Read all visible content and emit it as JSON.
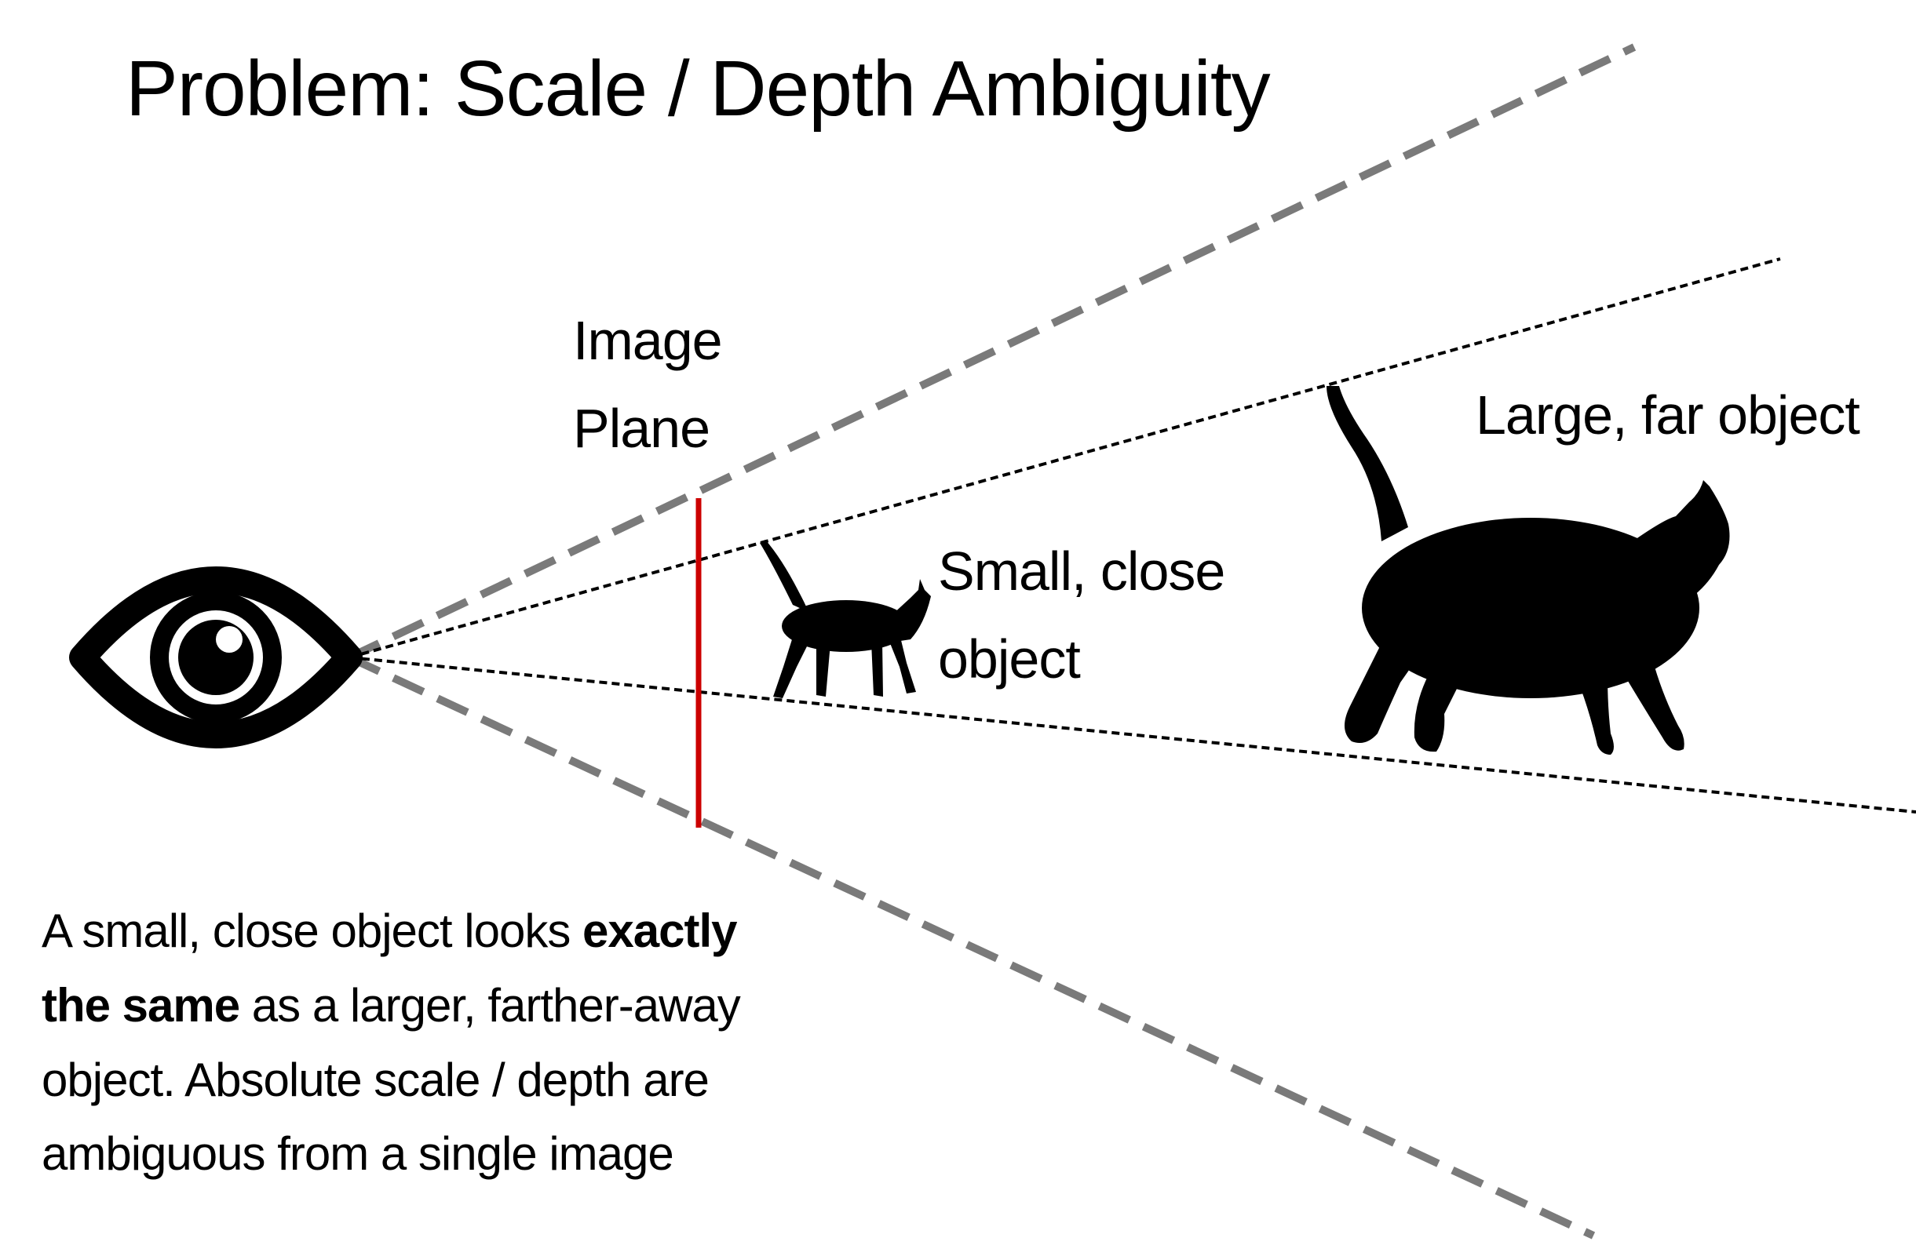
{
  "title": "Problem: Scale / Depth Ambiguity",
  "labels": {
    "image_plane_line1": "Image",
    "image_plane_line2": "Plane",
    "small_object_line1": "Small, close",
    "small_object_line2": "object",
    "large_object": "Large, far object"
  },
  "caption": {
    "line1_normal": "A small, close object looks ",
    "line1_bold": "exactly",
    "line2_bold": "the same",
    "line2_normal": " as a larger, farther-away",
    "line3": "object. Absolute scale / depth are",
    "line4": "ambiguous from a single image"
  },
  "colors": {
    "view_frustum_lines": "#7a7a7a",
    "object_rays": "#000000",
    "image_plane": "#cc0000",
    "silhouettes": "#000000"
  },
  "icons": [
    "eye-icon",
    "small-cat-silhouette",
    "large-cat-silhouette"
  ]
}
